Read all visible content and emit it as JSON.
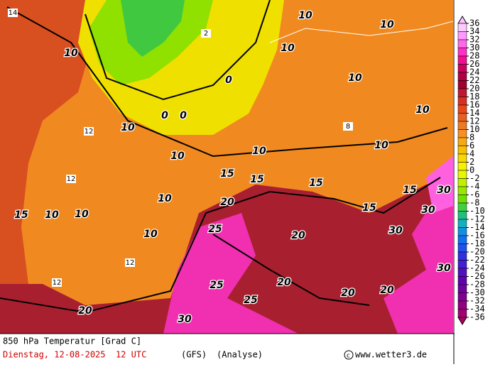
{
  "title": "850 hPa Temperatur [Grad C]",
  "date_line": "Dienstag, 12-08-2025  12 UTC",
  "model": "(GFS)",
  "run": "(Analyse)",
  "source": "www.wetter3.de",
  "colorbar": {
    "levels": [
      36,
      34,
      32,
      30,
      28,
      26,
      24,
      22,
      20,
      18,
      16,
      14,
      12,
      10,
      8,
      6,
      4,
      2,
      0,
      -2,
      -4,
      -6,
      -8,
      -10,
      -12,
      -14,
      -16,
      -18,
      -20,
      -22,
      -24,
      -26,
      -28,
      -30,
      -32,
      -34,
      -36
    ],
    "colors": [
      "#ffc8ff",
      "#ff98ff",
      "#ff68e8",
      "#ff30c8",
      "#f01090",
      "#d00060",
      "#b00040",
      "#a00030",
      "#c01830",
      "#d83020",
      "#e84818",
      "#e86020",
      "#f07820",
      "#f89020",
      "#f8a810",
      "#f8c000",
      "#f8d800",
      "#f8f000",
      "#e8f800",
      "#c0f000",
      "#98e800",
      "#70e000",
      "#40d040",
      "#20c080",
      "#10b0c0",
      "#1090e0",
      "#1070f0",
      "#2050f0",
      "#3030e0",
      "#4020d0",
      "#5010c0",
      "#6000b0",
      "#7000a0",
      "#800090",
      "#900080",
      "#a00070",
      "#b00060"
    ]
  },
  "contour_labels": [
    10,
    10,
    10,
    10,
    10,
    10,
    10,
    10,
    10,
    10,
    10,
    10,
    10,
    10,
    15,
    15,
    15,
    15,
    15,
    15,
    20,
    20,
    20,
    20,
    20,
    20,
    25,
    25,
    25,
    30,
    30,
    30,
    30,
    30,
    0,
    0,
    0,
    14,
    12,
    12,
    12,
    12,
    8,
    2
  ]
}
